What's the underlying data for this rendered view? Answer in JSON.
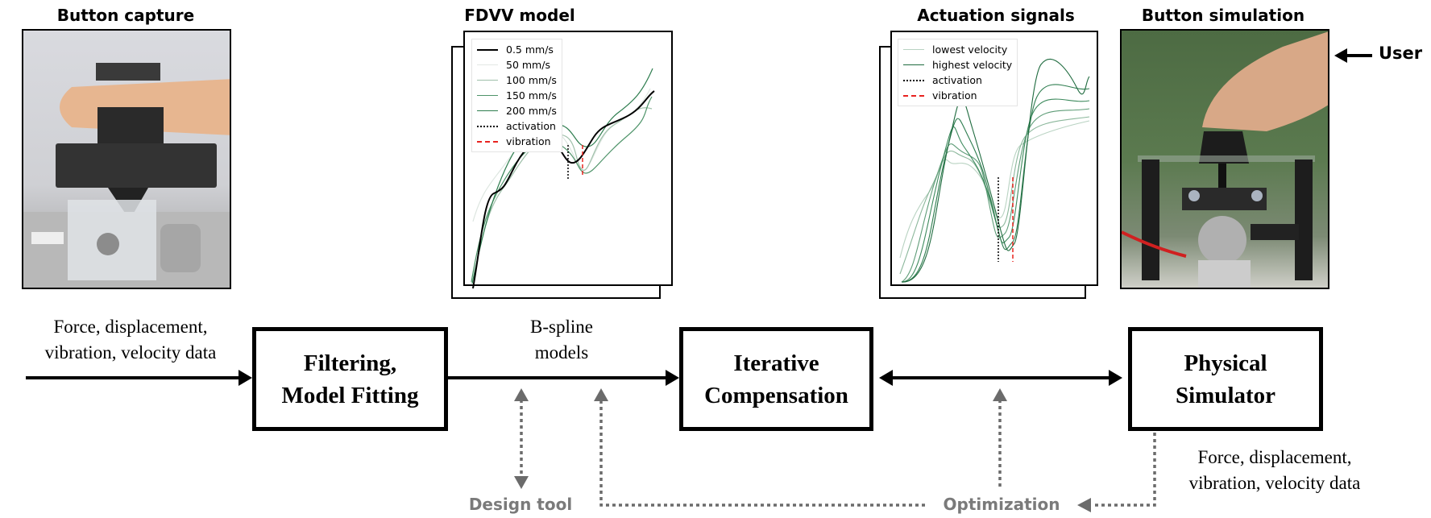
{
  "panels": {
    "button_capture": {
      "title": "Button capture"
    },
    "fdvv_model": {
      "title": "FDVV model",
      "legend": [
        "0.5 mm/s",
        "50 mm/s",
        "100 mm/s",
        "150 mm/s",
        "200 mm/s",
        "activation",
        "vibration"
      ]
    },
    "actuation_signals": {
      "title": "Actuation signals",
      "legend": [
        "lowest velocity",
        "highest velocity",
        "activation",
        "vibration"
      ]
    },
    "button_simulation": {
      "title": "Button simulation",
      "user_label": "User"
    }
  },
  "flow": {
    "input_label": [
      "Force, displacement,",
      "vibration, velocity data"
    ],
    "box_filtering": [
      "Filtering,",
      "Model Fitting"
    ],
    "bspline_label": [
      "B-spline",
      "models"
    ],
    "box_iterative": [
      "Iterative",
      "Compensation"
    ],
    "box_physical": [
      "Physical",
      "Simulator"
    ],
    "output_label": [
      "Force, displacement,",
      "vibration, velocity data"
    ],
    "design_tool": "Design tool",
    "optimization": "Optimization"
  },
  "colors": {
    "green": "#2e7d4f",
    "red": "#e8231f",
    "gray": "#6b6b6b"
  }
}
